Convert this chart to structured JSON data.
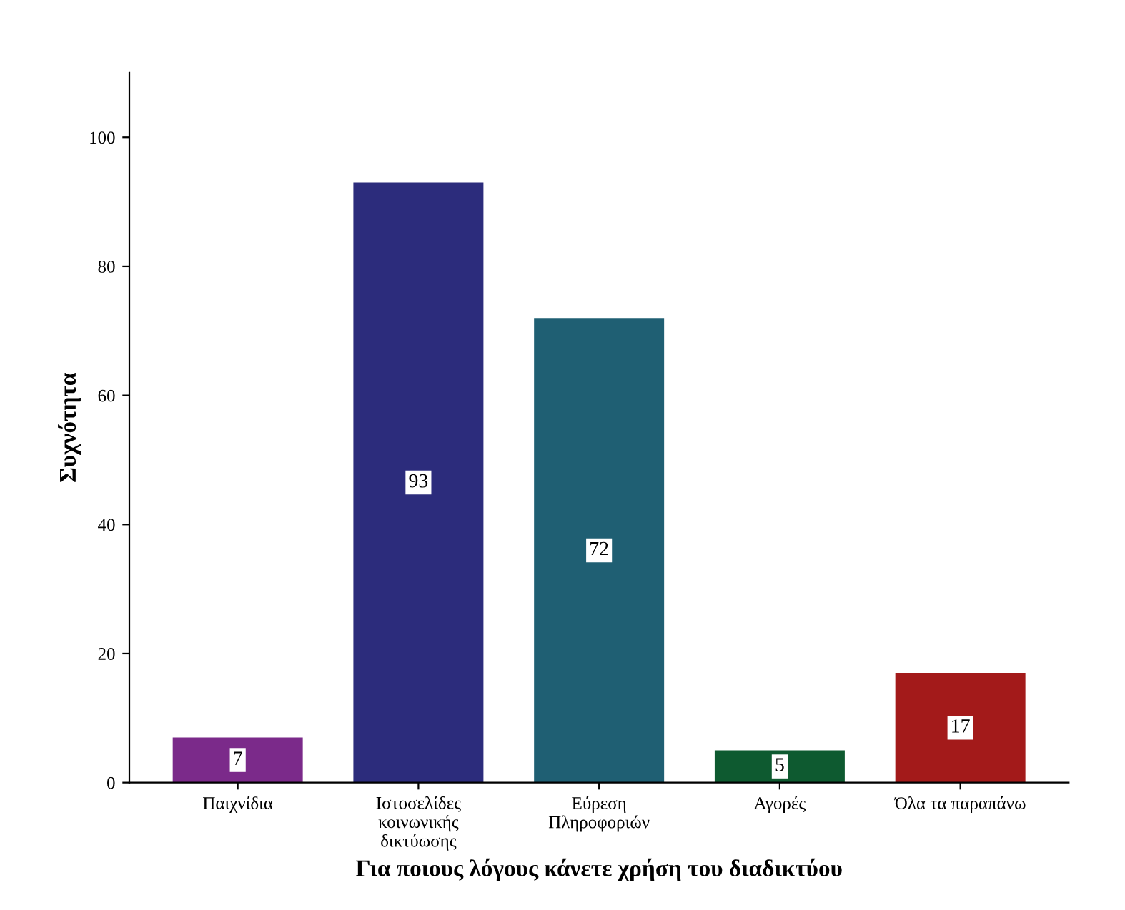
{
  "chart_data": {
    "type": "bar",
    "categories": [
      "Παιχνίδια",
      "Ιστοσελίδες\nκοινωνικής\nδικτύωσης",
      "Εύρεση\nΠληροφοριών",
      "Αγορές",
      "Όλα τα παραπάνω"
    ],
    "values": [
      7,
      93,
      72,
      5,
      17
    ],
    "colors": [
      "#7b2a8a",
      "#2c2c7c",
      "#1f5f73",
      "#0e5a30",
      "#a31a1a"
    ],
    "xlabel": "Για ποιους λόγους κάνετε χρήση του διαδικτύου",
    "ylabel": "Συχνότητα",
    "ylim": [
      0,
      110
    ],
    "yticks": [
      0,
      20,
      40,
      60,
      80,
      100
    ],
    "data_labels": true,
    "grid": false,
    "legend": false
  }
}
